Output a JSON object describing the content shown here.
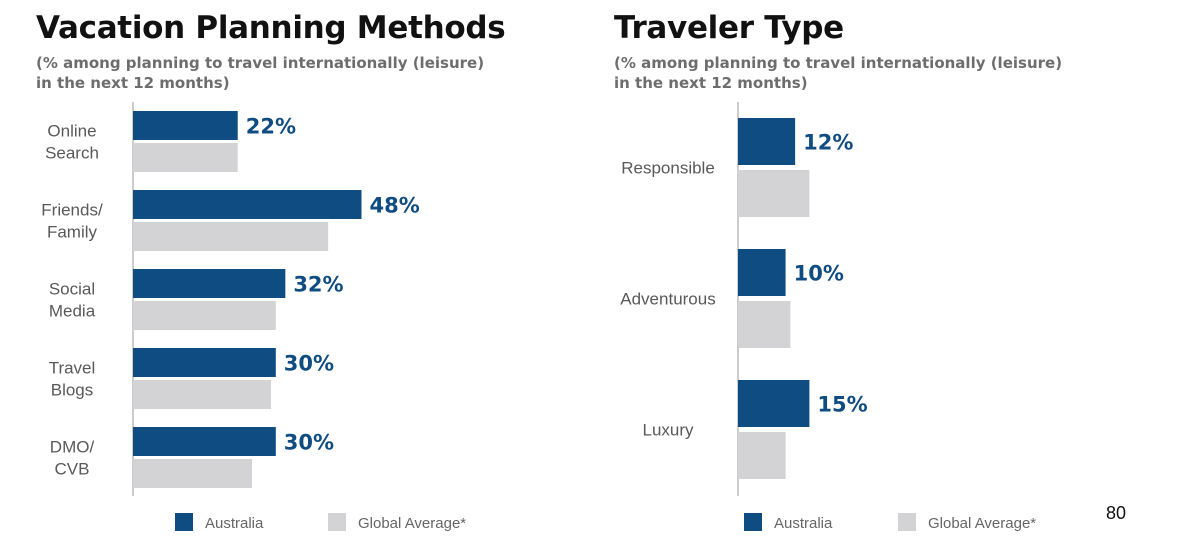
{
  "colors": {
    "australia": "#0f4c81",
    "global": "#d3d3d5",
    "axis": "#999999",
    "label": "#595959"
  },
  "legend": {
    "australia": "Australia",
    "global": "Global Average*"
  },
  "page_number": "80",
  "chart_data": [
    {
      "type": "bar",
      "orientation": "horizontal",
      "title": "Vacation Planning Methods",
      "subtitle_lines": [
        "(% among planning to travel internationally (leisure)",
        "in the next 12 months)"
      ],
      "categories": [
        [
          "Online",
          "Search"
        ],
        [
          "Friends/",
          "Family"
        ],
        [
          "Social",
          "Media"
        ],
        [
          "Travel",
          "Blogs"
        ],
        [
          "DMO/",
          "CVB"
        ]
      ],
      "series": [
        {
          "name": "Australia",
          "values": [
            22,
            48,
            32,
            30,
            30
          ],
          "data_labels": [
            "22%",
            "48%",
            "32%",
            "30%",
            "30%"
          ]
        },
        {
          "name": "Global Average*",
          "values": [
            22,
            41,
            30,
            29,
            25
          ]
        }
      ],
      "xlim": [
        0,
        50
      ],
      "grid": false,
      "legend_position": "bottom"
    },
    {
      "type": "bar",
      "orientation": "horizontal",
      "title": "Traveler Type",
      "subtitle_lines": [
        "(% among planning to travel internationally (leisure)",
        "in the next 12 months)"
      ],
      "categories": [
        [
          "Responsible"
        ],
        [
          "Adventurous"
        ],
        [
          "Luxury"
        ]
      ],
      "series": [
        {
          "name": "Australia",
          "values": [
            12,
            10,
            15
          ],
          "data_labels": [
            "12%",
            "10%",
            "15%"
          ]
        },
        {
          "name": "Global Average*",
          "values": [
            15,
            11,
            10
          ]
        }
      ],
      "xlim": [
        0,
        50
      ],
      "grid": false,
      "legend_position": "bottom"
    }
  ]
}
